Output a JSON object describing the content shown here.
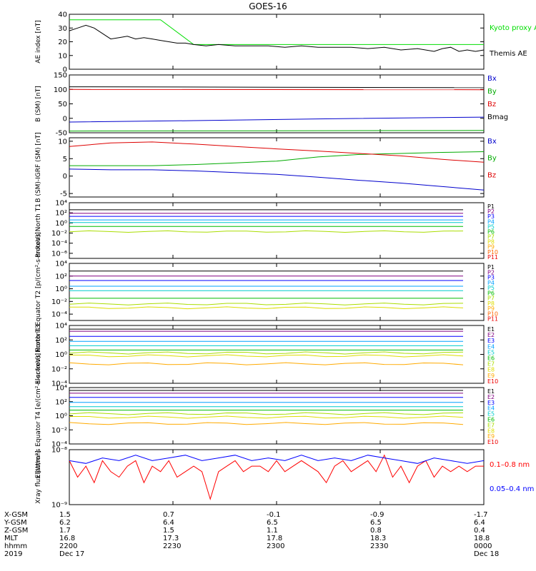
{
  "title": "GOES-16",
  "colors": {
    "p_colors": [
      "#000000",
      "#800080",
      "#0000ff",
      "#00a0ff",
      "#00cccc",
      "#00bb00",
      "#aadd00",
      "#dddd00",
      "#ffaa00",
      "#ff6600",
      "#ee0000"
    ],
    "e_colors": [
      "#000000",
      "#800080",
      "#0000ff",
      "#00a0ff",
      "#00cccc",
      "#00bb00",
      "#aadd00",
      "#dddd00",
      "#ffaa00",
      "#ee0000"
    ]
  },
  "chart_data": [
    {
      "type": "line",
      "id": "ae",
      "ylabel": "AE index [nT]",
      "ylim": [
        0,
        40
      ],
      "ticks": [
        0,
        10,
        20,
        30,
        40
      ],
      "tick_labels": [
        "0",
        "10",
        "20",
        "30",
        "40"
      ],
      "legend": [
        "Kyoto proxy AE",
        "Themis AE"
      ],
      "series": [
        {
          "name": "Kyoto proxy AE",
          "color": "#00dd00",
          "x": [
            0,
            0.12,
            0.22,
            0.3,
            1.0
          ],
          "values": [
            36,
            36,
            36,
            18,
            18
          ]
        },
        {
          "name": "Themis AE",
          "color": "#000000",
          "x": [
            0,
            0.02,
            0.04,
            0.06,
            0.08,
            0.1,
            0.12,
            0.14,
            0.16,
            0.18,
            0.2,
            0.22,
            0.24,
            0.26,
            0.28,
            0.3,
            0.33,
            0.36,
            0.4,
            0.44,
            0.48,
            0.52,
            0.56,
            0.6,
            0.64,
            0.68,
            0.72,
            0.76,
            0.8,
            0.84,
            0.88,
            0.9,
            0.92,
            0.94,
            0.96,
            0.98,
            1.0
          ],
          "values": [
            28,
            30,
            32,
            30,
            26,
            22,
            23,
            24,
            22,
            23,
            22,
            21,
            20,
            19,
            19,
            18,
            17,
            18,
            17,
            17,
            17,
            16,
            17,
            16,
            16,
            16,
            15,
            16,
            14,
            15,
            13,
            15,
            16,
            13,
            14,
            13,
            14
          ]
        }
      ]
    },
    {
      "type": "line",
      "id": "bsm",
      "ylabel": "B (SM) [nT]",
      "ylim": [
        -50,
        150
      ],
      "ticks": [
        -50,
        0,
        50,
        100,
        150
      ],
      "tick_labels": [
        "-50",
        "0",
        "50",
        "100",
        "150"
      ],
      "legend": [
        "Bx",
        "By",
        "Bz",
        "Bmag"
      ],
      "series": [
        {
          "name": "Bx",
          "color": "#0000cc",
          "x": [
            0,
            0.3,
            0.6,
            1.0
          ],
          "values": [
            -13,
            -8,
            -2,
            4
          ]
        },
        {
          "name": "By",
          "color": "#00aa00",
          "x": [
            0,
            1.0
          ],
          "values": [
            -44,
            -42
          ]
        },
        {
          "name": "Bz",
          "color": "#dd0000",
          "x": [
            0,
            1.0
          ],
          "values": [
            100,
            99
          ]
        },
        {
          "name": "Bmag",
          "color": "#000000",
          "x": [
            0,
            1.0
          ],
          "values": [
            109,
            106
          ]
        }
      ]
    },
    {
      "type": "line",
      "id": "bigrf",
      "ylabel": "B (SM)-IGRF (SM) [nT]",
      "ylim": [
        -6,
        11
      ],
      "ticks": [
        -5,
        0,
        5,
        10
      ],
      "tick_labels": [
        "-5",
        "0",
        "5",
        "10"
      ],
      "legend": [
        "Bx",
        "By",
        "Bz"
      ],
      "series": [
        {
          "name": "Bx",
          "color": "#0000cc",
          "x": [
            0,
            0.1,
            0.2,
            0.3,
            0.4,
            0.5,
            0.6,
            0.7,
            0.8,
            0.9,
            1.0
          ],
          "values": [
            2,
            1.8,
            1.8,
            1.5,
            1.0,
            0.5,
            -0.3,
            -1.2,
            -2,
            -3,
            -4
          ]
        },
        {
          "name": "By",
          "color": "#00aa00",
          "x": [
            0,
            0.1,
            0.2,
            0.3,
            0.4,
            0.5,
            0.6,
            0.7,
            0.8,
            0.9,
            1.0
          ],
          "values": [
            3,
            3,
            3,
            3.3,
            3.8,
            4.3,
            5.5,
            6.2,
            6.5,
            6.8,
            7
          ]
        },
        {
          "name": "Bz",
          "color": "#dd0000",
          "x": [
            0,
            0.1,
            0.2,
            0.3,
            0.4,
            0.5,
            0.6,
            0.7,
            0.8,
            0.9,
            1.0
          ],
          "values": [
            8.5,
            9.5,
            9.8,
            9.2,
            8.5,
            7.8,
            7.2,
            6.5,
            5.8,
            4.8,
            4
          ]
        }
      ]
    },
    {
      "type": "line",
      "id": "p_north",
      "log": true,
      "ylabel": "Protons North T1",
      "ylim": [
        -7,
        4
      ],
      "ticks": [
        4,
        2,
        0,
        -2,
        -4,
        -6
      ],
      "tick_labels": [
        "10⁴",
        "10²",
        "10⁰",
        "10⁻²",
        "10⁻⁴",
        "10⁻⁶"
      ],
      "legend": [
        "P1",
        "P2",
        "P3",
        "P4",
        "P5",
        "P6",
        "P7",
        "P8",
        "P9",
        "P10",
        "P11"
      ],
      "levels": [
        2.6,
        1.9,
        1.3,
        0.6,
        0.1,
        -0.7,
        -1.7,
        -3.5,
        -3.9,
        -4.3,
        -4.7
      ],
      "show": [
        true,
        true,
        true,
        true,
        true,
        true,
        true,
        false,
        false,
        false,
        false
      ]
    },
    {
      "type": "line",
      "id": "p_equator",
      "log": true,
      "ylabel": "Protons Equator T2 [p/(cm²-s-sr-keV)]",
      "ylim": [
        -5,
        4
      ],
      "ticks": [
        4,
        2,
        0,
        -2,
        -4
      ],
      "tick_labels": [
        "10⁴",
        "10²",
        "10⁰",
        "10⁻²",
        "10⁻⁴"
      ],
      "legend": [
        "P1",
        "P2",
        "P3",
        "P4",
        "P5",
        "P6",
        "P7",
        "P8",
        "P9",
        "P10",
        "P11"
      ],
      "levels": [
        2.8,
        2.0,
        1.3,
        0.4,
        -0.3,
        -1.5,
        -2.4,
        -3.0,
        -3.8,
        -4.2,
        -4.6
      ],
      "show": [
        true,
        true,
        true,
        true,
        true,
        true,
        true,
        true,
        false,
        false,
        false
      ]
    },
    {
      "type": "line",
      "id": "e_north",
      "log": true,
      "ylabel": "Electrons North T3",
      "ylim": [
        -4,
        4
      ],
      "ticks": [
        4,
        2,
        0,
        -2,
        -4
      ],
      "tick_labels": [
        "10⁴",
        "10²",
        "10⁰",
        "10⁻²",
        "10⁻⁴"
      ],
      "legend": [
        "E1",
        "E2",
        "E3",
        "E4",
        "E5",
        "E6",
        "E7",
        "E8",
        "E9",
        "E10"
      ],
      "levels": [
        3.5,
        3.2,
        2.5,
        1.8,
        1.2,
        0.6,
        0.2,
        -0.2,
        -1.3,
        -1.8
      ],
      "show": [
        true,
        true,
        true,
        true,
        true,
        true,
        true,
        true,
        true,
        false
      ]
    },
    {
      "type": "line",
      "id": "e_equator",
      "log": true,
      "ylabel": "Electrons Equator T4 [e/(cm²-s-sr-keV)]",
      "ylim": [
        -4,
        4
      ],
      "ticks": [
        4,
        2,
        0,
        -2,
        -4
      ],
      "tick_labels": [
        "10⁴",
        "10²",
        "10⁰",
        "10⁻²",
        "10⁻⁴"
      ],
      "legend": [
        "E1",
        "E2",
        "E3",
        "E4",
        "E5",
        "E6",
        "E7",
        "E8",
        "E9",
        "E10"
      ],
      "levels": [
        3.6,
        3.2,
        2.6,
        1.9,
        1.3,
        0.8,
        0.3,
        -0.2,
        -1.1,
        -1.7
      ],
      "show": [
        true,
        true,
        true,
        true,
        true,
        true,
        true,
        true,
        true,
        false
      ]
    },
    {
      "type": "line",
      "id": "xray",
      "log": true,
      "ylabel": "Xray flux [W/m²]",
      "ylim": [
        -9,
        -8
      ],
      "ticks": [
        -8,
        -9
      ],
      "tick_labels": [
        "10⁻⁸",
        "10⁻⁹"
      ],
      "legend": [
        "0.1–0.8 nm",
        "0.05–0.4 nm"
      ],
      "series": [
        {
          "name": "0.1–0.8 nm",
          "color": "#ff0000",
          "x": [
            0,
            0.02,
            0.04,
            0.06,
            0.08,
            0.1,
            0.12,
            0.14,
            0.16,
            0.18,
            0.2,
            0.22,
            0.24,
            0.26,
            0.28,
            0.3,
            0.32,
            0.34,
            0.36,
            0.38,
            0.4,
            0.42,
            0.44,
            0.46,
            0.48,
            0.5,
            0.52,
            0.54,
            0.56,
            0.58,
            0.6,
            0.62,
            0.64,
            0.66,
            0.68,
            0.7,
            0.72,
            0.74,
            0.76,
            0.78,
            0.8,
            0.82,
            0.84,
            0.86,
            0.88,
            0.9,
            0.92,
            0.94,
            0.96,
            0.98,
            1.0
          ],
          "values": [
            -8.2,
            -8.5,
            -8.3,
            -8.6,
            -8.2,
            -8.4,
            -8.5,
            -8.3,
            -8.2,
            -8.6,
            -8.3,
            -8.4,
            -8.2,
            -8.5,
            -8.4,
            -8.3,
            -8.4,
            -8.9,
            -8.4,
            -8.3,
            -8.2,
            -8.4,
            -8.3,
            -8.3,
            -8.4,
            -8.2,
            -8.4,
            -8.3,
            -8.2,
            -8.3,
            -8.4,
            -8.6,
            -8.3,
            -8.2,
            -8.4,
            -8.3,
            -8.2,
            -8.4,
            -8.1,
            -8.5,
            -8.3,
            -8.6,
            -8.3,
            -8.2,
            -8.5,
            -8.3,
            -8.4,
            -8.3,
            -8.4,
            -8.3,
            -8.3
          ]
        },
        {
          "name": "0.05–0.4 nm",
          "color": "#0000ff",
          "x": [
            0,
            0.04,
            0.08,
            0.12,
            0.16,
            0.2,
            0.24,
            0.28,
            0.32,
            0.36,
            0.4,
            0.44,
            0.48,
            0.52,
            0.56,
            0.6,
            0.64,
            0.68,
            0.72,
            0.76,
            0.8,
            0.84,
            0.88,
            0.92,
            0.96,
            1.0
          ],
          "values": [
            -8.2,
            -8.25,
            -8.15,
            -8.2,
            -8.1,
            -8.2,
            -8.15,
            -8.1,
            -8.2,
            -8.15,
            -8.1,
            -8.2,
            -8.15,
            -8.2,
            -8.1,
            -8.2,
            -8.15,
            -8.2,
            -8.1,
            -8.15,
            -8.2,
            -8.25,
            -8.15,
            -8.2,
            -8.25,
            -8.2
          ]
        }
      ]
    }
  ],
  "ephemeris": {
    "row_labels": [
      "X-GSM",
      "Y-GSM",
      "Z-GSM",
      "MLT",
      "hhmm",
      "2019"
    ],
    "columns": [
      {
        "values": [
          "1.5",
          "6.2",
          "1.7",
          "16.8",
          "2200",
          "Dec 17"
        ]
      },
      {
        "values": [
          "0.7",
          "6.4",
          "1.5",
          "17.3",
          "2230",
          ""
        ]
      },
      {
        "values": [
          "-0.1",
          "6.5",
          "1.1",
          "17.8",
          "2300",
          ""
        ]
      },
      {
        "values": [
          "-0.9",
          "6.5",
          "0.8",
          "18.3",
          "2330",
          ""
        ]
      },
      {
        "values": [
          "-1.7",
          "6.4",
          "0.4",
          "18.8",
          "0000",
          "Dec 18"
        ]
      }
    ]
  }
}
